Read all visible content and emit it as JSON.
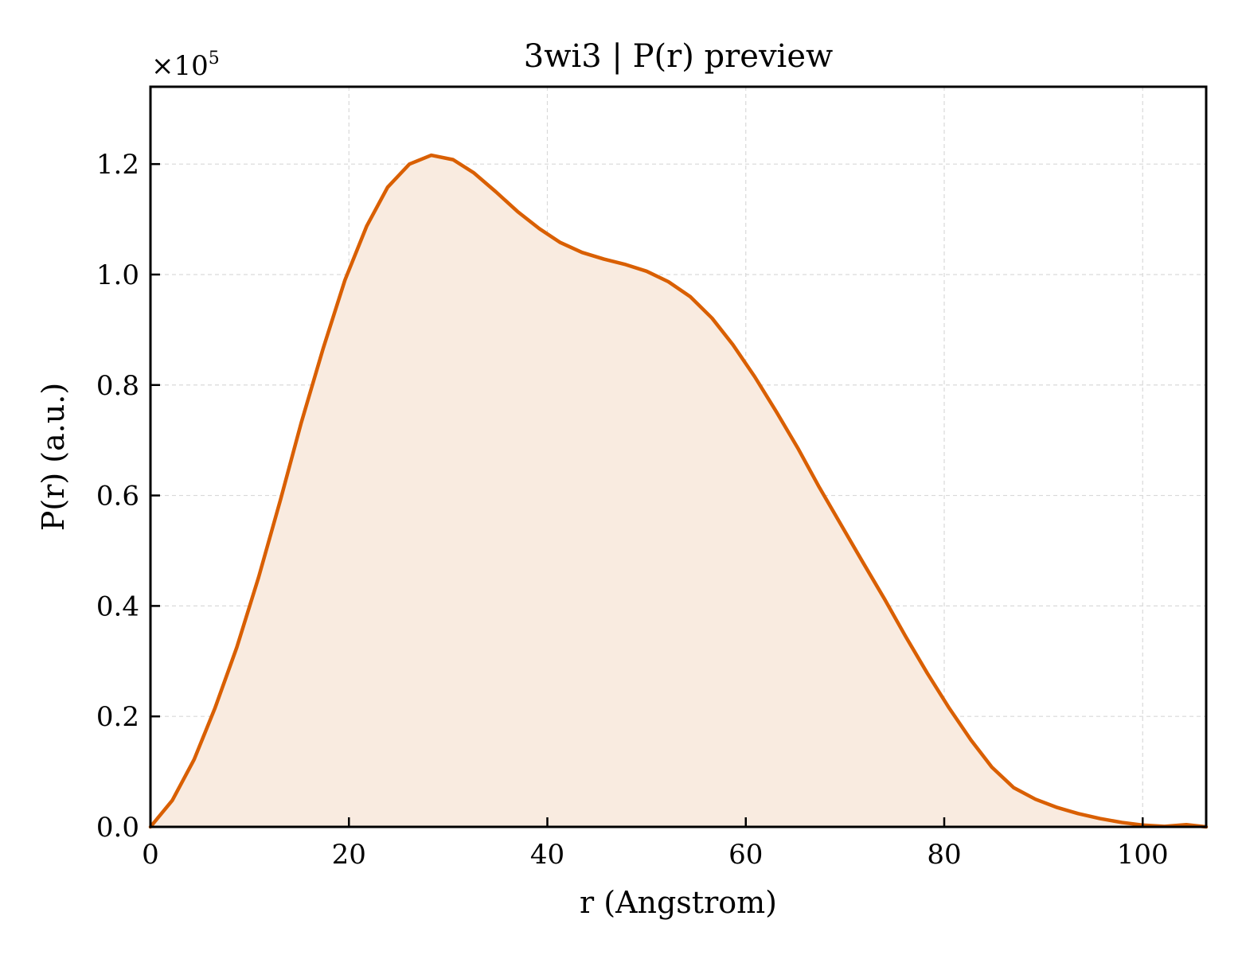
{
  "chart_data": {
    "type": "area",
    "title": "3wi3 | P(r) preview",
    "xlabel": "r (Angstrom)",
    "ylabel": "P(r) (a.u.)",
    "y_multiplier_base": "×10",
    "y_multiplier_exponent": "5",
    "xlim": [
      0,
      106.4
    ],
    "ylim": [
      0,
      1.34
    ],
    "x_ticks": [
      0,
      20,
      40,
      60,
      80,
      100
    ],
    "x_tick_labels": [
      "0",
      "20",
      "40",
      "60",
      "80",
      "100"
    ],
    "y_ticks": [
      0,
      0.2,
      0.4,
      0.6,
      0.8,
      1.0,
      1.2
    ],
    "y_tick_labels": [
      "0.0",
      "0.2",
      "0.4",
      "0.6",
      "0.8",
      "1.0",
      "1.2"
    ],
    "grid": true,
    "colors": {
      "line": "#d95f02",
      "fill": "#f9ebe0",
      "grid": "#d9d9d9"
    },
    "series": [
      {
        "x": [
          0,
          2.2,
          4.4,
          6.5,
          8.7,
          10.9,
          13.1,
          15.2,
          17.4,
          19.6,
          21.8,
          23.9,
          26.1,
          28.3,
          30.5,
          32.6,
          34.8,
          37.0,
          39.2,
          41.3,
          43.5,
          45.7,
          47.9,
          50.0,
          52.2,
          54.4,
          56.6,
          58.7,
          60.9,
          63.1,
          65.3,
          67.4,
          69.6,
          71.8,
          74.0,
          76.1,
          78.3,
          80.5,
          82.7,
          84.8,
          87.0,
          89.2,
          91.4,
          93.5,
          95.7,
          97.9,
          100.1,
          102.2,
          104.4,
          106.4
        ],
        "y": [
          0.0,
          0.048,
          0.122,
          0.215,
          0.325,
          0.452,
          0.592,
          0.732,
          0.866,
          0.99,
          1.088,
          1.158,
          1.2,
          1.216,
          1.208,
          1.184,
          1.15,
          1.114,
          1.083,
          1.058,
          1.04,
          1.028,
          1.018,
          1.006,
          0.987,
          0.96,
          0.921,
          0.873,
          0.815,
          0.751,
          0.684,
          0.615,
          0.547,
          0.479,
          0.412,
          0.345,
          0.278,
          0.215,
          0.157,
          0.108,
          0.071,
          0.05,
          0.035,
          0.024,
          0.015,
          0.008,
          0.003,
          0.001,
          0.004,
          0.0
        ]
      }
    ]
  }
}
